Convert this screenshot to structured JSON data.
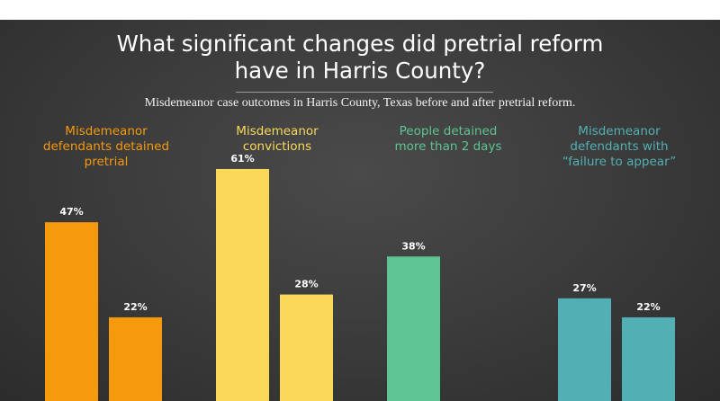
{
  "header": {
    "title_line1": "What significant changes did pretrial reform",
    "title_line2": "have in Harris County?",
    "subtitle": "Misdemeanor case outcomes in Harris County, Texas before and after pretrial reform."
  },
  "colors": {
    "background": "#3a3a3a",
    "orange": "#f59a0c",
    "yellow": "#fad85a",
    "green": "#5ec493",
    "teal": "#52b0b5"
  },
  "chart_data": {
    "type": "bar",
    "title": "What significant changes did pretrial reform have in Harris County?",
    "subtitle": "Misdemeanor case outcomes in Harris County, Texas before and after pretrial reform.",
    "unit": "%",
    "ylim": [
      0,
      70
    ],
    "groups": [
      {
        "label_lines": [
          "Misdemeanor",
          "defendants detained",
          "pretrial"
        ],
        "color": "#f59a0c",
        "values": [
          47,
          22
        ],
        "value_labels": [
          "47%",
          "22%"
        ]
      },
      {
        "label_lines": [
          "Misdemeanor",
          "convictions"
        ],
        "color": "#fad85a",
        "values": [
          61,
          28
        ],
        "value_labels": [
          "61%",
          "28%"
        ]
      },
      {
        "label_lines": [
          "People detained",
          "more than 2 days"
        ],
        "color": "#5ec493",
        "values": [
          38
        ],
        "value_labels": [
          "38%"
        ]
      },
      {
        "label_lines": [
          "Misdemeanor",
          "defendants with",
          "“failure to appear”"
        ],
        "color": "#52b0b5",
        "values": [
          27,
          22
        ],
        "value_labels": [
          "27%",
          "22%"
        ]
      }
    ]
  }
}
